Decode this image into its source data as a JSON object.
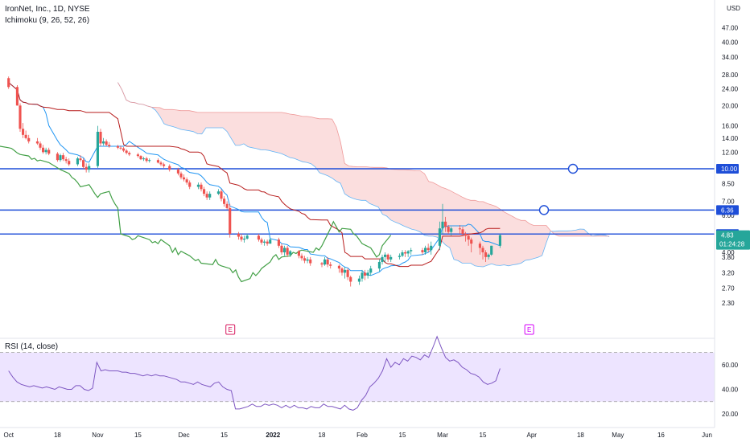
{
  "legend": {
    "symbol": "IronNet, Inc., 1D, NYSE",
    "indicator": "Ichimoku (9, 26, 52, 26)"
  },
  "rsi_label": "RSI (14, close)",
  "colors": {
    "up": "#26a69a",
    "down": "#ef5350",
    "conversion": "#2196f3",
    "base": "#b71c1c",
    "lagging": "#43a047",
    "cloud_bear": "#f8c8c8",
    "cloud_bull": "#c8e0f8",
    "hline": "#1e4ed8",
    "rsi": "#7e57c2",
    "rsi_band": "#ede4ff",
    "earnings": "#d81b60",
    "earnings_future": "#d500f9"
  },
  "chart_data": [
    {
      "type": "candlestick",
      "name": "price",
      "x": [
        "2021-10-01",
        "2021-10-04",
        "2021-10-05",
        "2021-10-06",
        "2021-10-07",
        "2021-10-08",
        "2021-10-11",
        "2021-10-12",
        "2021-10-13",
        "2021-10-14",
        "2021-10-15",
        "2021-10-18",
        "2021-10-19",
        "2021-10-20",
        "2021-10-21",
        "2021-10-22",
        "2021-10-25",
        "2021-10-26",
        "2021-10-27",
        "2021-10-28",
        "2021-10-29",
        "2021-11-01",
        "2021-11-02",
        "2021-11-03",
        "2021-11-04",
        "2021-11-05",
        "2021-11-08",
        "2021-11-09",
        "2021-11-10",
        "2021-11-11",
        "2021-11-12",
        "2021-11-15",
        "2021-11-16",
        "2021-11-17",
        "2021-11-18",
        "2021-11-19",
        "2021-11-22",
        "2021-11-23",
        "2021-11-24",
        "2021-11-26",
        "2021-11-29",
        "2021-11-30",
        "2021-12-01",
        "2021-12-02",
        "2021-12-03",
        "2021-12-06",
        "2021-12-07",
        "2021-12-08",
        "2021-12-09",
        "2021-12-10",
        "2021-12-13",
        "2021-12-14",
        "2021-12-15",
        "2021-12-16",
        "2021-12-17",
        "2021-12-20",
        "2021-12-21",
        "2021-12-22",
        "2021-12-23",
        "2021-12-27",
        "2021-12-28",
        "2021-12-29",
        "2021-12-30",
        "2021-12-31",
        "2022-01-03",
        "2022-01-04",
        "2022-01-05",
        "2022-01-06",
        "2022-01-07",
        "2022-01-10",
        "2022-01-11",
        "2022-01-12",
        "2022-01-13",
        "2022-01-14",
        "2022-01-18",
        "2022-01-19",
        "2022-01-20",
        "2022-01-21",
        "2022-01-24",
        "2022-01-25",
        "2022-01-26",
        "2022-01-27",
        "2022-01-28",
        "2022-01-31",
        "2022-02-01",
        "2022-02-02",
        "2022-02-03",
        "2022-02-04",
        "2022-02-07",
        "2022-02-08",
        "2022-02-09",
        "2022-02-10",
        "2022-02-11",
        "2022-02-14",
        "2022-02-15",
        "2022-02-16",
        "2022-02-17",
        "2022-02-18",
        "2022-02-22",
        "2022-02-23",
        "2022-02-24",
        "2022-02-25",
        "2022-02-28",
        "2022-03-01",
        "2022-03-02",
        "2022-03-03",
        "2022-03-04",
        "2022-03-07",
        "2022-03-08",
        "2022-03-09",
        "2022-03-10",
        "2022-03-11",
        "2022-03-14",
        "2022-03-15",
        "2022-03-16",
        "2022-03-17",
        "2022-03-18",
        "2022-03-21"
      ],
      "open": [
        27.0,
        24.5,
        20.0,
        15.5,
        14.5,
        14.0,
        13.5,
        13.2,
        12.6,
        12.0,
        12.3,
        11.8,
        11.0,
        11.6,
        11.1,
        10.9,
        10.5,
        11.2,
        11.0,
        10.2,
        9.9,
        10.3,
        15.0,
        13.2,
        13.5,
        13.0,
        12.8,
        12.6,
        12.5,
        12.2,
        11.9,
        11.7,
        11.5,
        11.1,
        11.2,
        10.9,
        11.0,
        10.7,
        10.5,
        10.3,
        9.9,
        9.5,
        9.1,
        8.9,
        8.6,
        8.2,
        8.4,
        8.0,
        7.6,
        7.3,
        7.6,
        7.8,
        7.2,
        6.8,
        6.5,
        4.9,
        4.75,
        4.6,
        4.65,
        4.8,
        4.6,
        4.45,
        4.5,
        4.4,
        4.6,
        4.3,
        4.0,
        4.2,
        3.9,
        4.05,
        3.85,
        3.75,
        3.65,
        3.7,
        3.55,
        3.5,
        3.7,
        3.5,
        3.45,
        3.35,
        3.2,
        3.3,
        3.05,
        2.9,
        3.0,
        3.2,
        3.1,
        3.2,
        3.35,
        3.6,
        3.8,
        3.9,
        3.7,
        3.8,
        3.85,
        4.0,
        3.95,
        4.05,
        4.1,
        4.0,
        4.2,
        4.1,
        4.3,
        5.2,
        5.6,
        5.3,
        5.0,
        5.2,
        5.15,
        4.9,
        4.8,
        4.6,
        4.4,
        4.2,
        4.0,
        3.8,
        3.9,
        4.3
      ],
      "high": [
        27.5,
        25.0,
        20.5,
        16.5,
        15.2,
        14.5,
        14.0,
        13.5,
        13.0,
        12.6,
        12.6,
        12.0,
        11.8,
        11.9,
        11.4,
        11.2,
        11.4,
        11.6,
        11.2,
        10.6,
        10.6,
        16.0,
        15.5,
        14.0,
        13.8,
        13.4,
        13.0,
        12.9,
        12.7,
        12.4,
        12.1,
        11.9,
        11.6,
        11.4,
        11.4,
        11.2,
        11.2,
        10.9,
        10.7,
        10.5,
        10.1,
        9.7,
        9.4,
        9.1,
        8.8,
        8.6,
        8.6,
        8.2,
        7.8,
        7.8,
        8.0,
        8.0,
        7.4,
        7.0,
        6.8,
        5.0,
        4.9,
        4.8,
        4.9,
        4.9,
        4.7,
        4.6,
        4.6,
        4.7,
        4.7,
        4.4,
        4.3,
        4.3,
        4.1,
        4.1,
        3.95,
        3.85,
        3.8,
        3.8,
        3.6,
        3.8,
        3.8,
        3.6,
        3.5,
        3.4,
        3.4,
        3.35,
        3.1,
        3.1,
        3.3,
        3.3,
        3.3,
        3.45,
        3.7,
        3.9,
        4.0,
        3.95,
        3.9,
        3.95,
        4.1,
        4.1,
        4.1,
        4.2,
        4.2,
        4.3,
        4.4,
        4.5,
        5.6,
        6.8,
        5.9,
        5.4,
        5.3,
        5.4,
        5.3,
        5.0,
        4.9,
        4.7,
        4.5,
        4.3,
        4.1,
        3.95,
        4.3,
        4.9
      ],
      "low": [
        24.0,
        20.0,
        15.0,
        14.0,
        13.8,
        13.2,
        13.0,
        12.3,
        11.8,
        11.7,
        11.6,
        10.8,
        10.8,
        10.9,
        10.6,
        10.3,
        10.3,
        10.8,
        10.0,
        9.6,
        9.6,
        10.1,
        12.8,
        12.9,
        12.8,
        12.6,
        12.4,
        12.3,
        12.0,
        11.7,
        11.5,
        11.3,
        11.0,
        10.9,
        10.7,
        10.7,
        10.6,
        10.3,
        10.1,
        9.7,
        9.3,
        8.9,
        8.7,
        8.4,
        8.0,
        8.0,
        7.8,
        7.4,
        7.1,
        7.1,
        7.5,
        7.0,
        6.6,
        6.4,
        4.7,
        4.6,
        4.5,
        4.45,
        4.6,
        4.5,
        4.35,
        4.3,
        4.3,
        4.4,
        4.2,
        3.9,
        3.85,
        3.8,
        3.8,
        3.75,
        3.65,
        3.55,
        3.55,
        3.45,
        3.4,
        3.45,
        3.4,
        3.35,
        3.2,
        3.1,
        3.0,
        2.95,
        2.75,
        2.8,
        2.9,
        2.95,
        3.0,
        3.1,
        3.25,
        3.5,
        3.6,
        3.6,
        3.6,
        3.7,
        3.8,
        3.8,
        3.8,
        3.9,
        3.9,
        3.9,
        4.0,
        3.9,
        4.1,
        4.9,
        5.0,
        4.9,
        4.8,
        4.9,
        4.8,
        4.5,
        4.3,
        4.0,
        3.9,
        3.7,
        3.6,
        3.7,
        3.85,
        4.2
      ],
      "close": [
        24.5,
        20.0,
        15.5,
        14.5,
        14.0,
        13.5,
        13.2,
        12.6,
        12.0,
        12.3,
        11.8,
        11.0,
        11.6,
        11.1,
        10.9,
        10.5,
        11.2,
        11.0,
        10.2,
        9.9,
        10.3,
        15.0,
        13.2,
        13.5,
        13.0,
        12.8,
        12.6,
        12.5,
        12.2,
        11.9,
        11.7,
        11.5,
        11.1,
        11.2,
        10.9,
        11.0,
        10.7,
        10.5,
        10.3,
        9.9,
        9.5,
        9.1,
        8.9,
        8.6,
        8.2,
        8.4,
        8.0,
        7.6,
        7.3,
        7.6,
        7.8,
        7.2,
        6.8,
        6.5,
        4.9,
        4.75,
        4.6,
        4.65,
        4.8,
        4.6,
        4.45,
        4.5,
        4.4,
        4.6,
        4.3,
        4.0,
        4.2,
        3.9,
        4.05,
        3.85,
        3.75,
        3.65,
        3.7,
        3.55,
        3.5,
        3.7,
        3.5,
        3.45,
        3.35,
        3.2,
        3.3,
        3.05,
        2.9,
        3.0,
        3.2,
        3.1,
        3.2,
        3.35,
        3.6,
        3.8,
        3.9,
        3.7,
        3.8,
        3.85,
        4.0,
        3.95,
        4.05,
        4.1,
        4.0,
        4.2,
        4.1,
        4.3,
        5.2,
        5.6,
        5.3,
        5.0,
        5.2,
        5.15,
        4.9,
        4.8,
        4.6,
        4.4,
        4.2,
        4.0,
        3.8,
        3.9,
        4.3,
        4.83
      ]
    },
    {
      "type": "line",
      "name": "rsi",
      "x_range": [
        "2021-10-01",
        "2022-03-21"
      ],
      "values": [
        55,
        50,
        46,
        44,
        43,
        42,
        43,
        42,
        41,
        42,
        41,
        40,
        42,
        41,
        40,
        40,
        43,
        43,
        40,
        39,
        41,
        62,
        55,
        56,
        55,
        55,
        55,
        54,
        54,
        53,
        53,
        52,
        51,
        52,
        51,
        52,
        51,
        51,
        50,
        49,
        48,
        46,
        46,
        45,
        44,
        46,
        44,
        43,
        42,
        45,
        46,
        42,
        40,
        39,
        24,
        24,
        25,
        26,
        28,
        26,
        26,
        28,
        27,
        28,
        27,
        25,
        27,
        25,
        27,
        25,
        25,
        24,
        26,
        25,
        25,
        28,
        26,
        26,
        25,
        24,
        27,
        24,
        23,
        25,
        31,
        35,
        42,
        45,
        49,
        55,
        65,
        58,
        62,
        60,
        65,
        63,
        67,
        66,
        64,
        68,
        66,
        74,
        83,
        74,
        66,
        63,
        64,
        62,
        58,
        56,
        53,
        52,
        50,
        46,
        44,
        45,
        47,
        57
      ],
      "ylim": [
        20,
        75
      ],
      "overbought": 70,
      "oversold": 30
    }
  ],
  "price_axis": {
    "currency": "USD",
    "ticks": [
      "47.00",
      "40.00",
      "34.00",
      "28.00",
      "24.00",
      "20.00",
      "16.00",
      "14.00",
      "12.00",
      "10.00",
      "8.50",
      "7.00",
      "6.00",
      "4.00",
      "3.80",
      "3.20",
      "2.70",
      "2.30"
    ]
  },
  "rsi_axis": {
    "ticks": [
      "60.00",
      "40.00",
      "20.00"
    ]
  },
  "time_axis": {
    "ticks": [
      "Oct",
      "18",
      "Nov",
      "15",
      "Dec",
      "15",
      "2022",
      "18",
      "Feb",
      "15",
      "Mar",
      "15",
      "Apr",
      "18",
      "May",
      "16",
      "Jun"
    ]
  },
  "horizontal_lines": [
    {
      "label": "10.00",
      "price": 10.0,
      "marker": true
    },
    {
      "label": "6.36",
      "price": 6.36,
      "marker": true
    },
    {
      "label": "4.89",
      "price": 4.89,
      "marker": false
    }
  ],
  "last_price": {
    "value": "4.83",
    "countdown": "01:24:28"
  },
  "earnings_markers": [
    "E",
    "E"
  ]
}
